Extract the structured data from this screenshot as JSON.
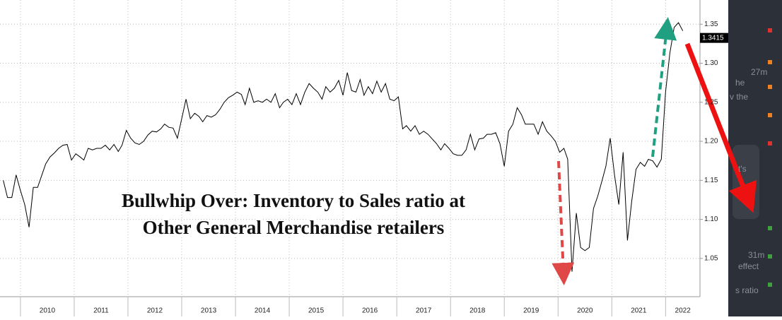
{
  "chart_data": {
    "type": "line",
    "annotation": [
      "Bullwhip Over: Inventory to Sales ratio at",
      "Other General Merchandise retailers"
    ],
    "color": "#000000",
    "x": [
      2009.68,
      2009.76,
      2009.84,
      2009.92,
      2010.0,
      2010.08,
      2010.16,
      2010.24,
      2010.32,
      2010.39,
      2010.47,
      2010.55,
      2010.63,
      2010.71,
      2010.79,
      2010.87,
      2010.95,
      2011.03,
      2011.11,
      2011.18,
      2011.26,
      2011.34,
      2011.42,
      2011.5,
      2011.58,
      2011.66,
      2011.74,
      2011.82,
      2011.89,
      2011.97,
      2012.05,
      2012.13,
      2012.21,
      2012.29,
      2012.37,
      2012.45,
      2012.53,
      2012.61,
      2012.68,
      2012.76,
      2012.84,
      2012.92,
      2013.0,
      2013.08,
      2013.16,
      2013.24,
      2013.32,
      2013.39,
      2013.47,
      2013.55,
      2013.63,
      2013.71,
      2013.79,
      2013.87,
      2013.95,
      2014.03,
      2014.11,
      2014.18,
      2014.26,
      2014.34,
      2014.42,
      2014.5,
      2014.58,
      2014.66,
      2014.74,
      2014.82,
      2014.89,
      2014.97,
      2015.05,
      2015.13,
      2015.21,
      2015.29,
      2015.37,
      2015.45,
      2015.53,
      2015.61,
      2015.68,
      2015.76,
      2015.84,
      2015.92,
      2016.0,
      2016.08,
      2016.16,
      2016.24,
      2016.32,
      2016.39,
      2016.47,
      2016.55,
      2016.63,
      2016.71,
      2016.79,
      2016.87,
      2016.95,
      2017.03,
      2017.11,
      2017.18,
      2017.26,
      2017.34,
      2017.42,
      2017.5,
      2017.58,
      2017.66,
      2017.74,
      2017.82,
      2017.89,
      2017.97,
      2018.05,
      2018.13,
      2018.21,
      2018.29,
      2018.37,
      2018.45,
      2018.53,
      2018.61,
      2018.68,
      2018.76,
      2018.84,
      2018.92,
      2019.0,
      2019.08,
      2019.16,
      2019.24,
      2019.32,
      2019.39,
      2019.47,
      2019.55,
      2019.63,
      2019.71,
      2019.79,
      2019.87,
      2019.95,
      2020.03,
      2020.11,
      2020.18,
      2020.26,
      2020.34,
      2020.42,
      2020.5,
      2020.58,
      2020.66,
      2020.74,
      2020.82,
      2020.89,
      2020.97,
      2021.05,
      2021.13,
      2021.21,
      2021.29,
      2021.37,
      2021.45,
      2021.53,
      2021.61,
      2021.68,
      2021.76,
      2021.84,
      2021.92,
      2022.0,
      2022.08,
      2022.16,
      2022.24,
      2022.32
    ],
    "values": [
      1.15,
      1.128,
      1.128,
      1.157,
      1.137,
      1.119,
      1.09,
      1.141,
      1.141,
      1.155,
      1.171,
      1.18,
      1.185,
      1.191,
      1.195,
      1.196,
      1.176,
      1.184,
      1.18,
      1.176,
      1.191,
      1.189,
      1.191,
      1.191,
      1.195,
      1.189,
      1.196,
      1.187,
      1.195,
      1.214,
      1.204,
      1.198,
      1.196,
      1.2,
      1.208,
      1.213,
      1.212,
      1.216,
      1.222,
      1.218,
      1.217,
      1.204,
      1.229,
      1.254,
      1.229,
      1.236,
      1.232,
      1.225,
      1.233,
      1.231,
      1.234,
      1.241,
      1.25,
      1.256,
      1.259,
      1.263,
      1.26,
      1.247,
      1.268,
      1.25,
      1.252,
      1.25,
      1.254,
      1.25,
      1.261,
      1.243,
      1.25,
      1.254,
      1.247,
      1.261,
      1.247,
      1.263,
      1.274,
      1.268,
      1.263,
      1.254,
      1.27,
      1.263,
      1.268,
      1.278,
      1.259,
      1.288,
      1.265,
      1.263,
      1.279,
      1.259,
      1.27,
      1.261,
      1.277,
      1.263,
      1.274,
      1.254,
      1.252,
      1.257,
      1.216,
      1.22,
      1.213,
      1.22,
      1.209,
      1.213,
      1.209,
      1.203,
      1.197,
      1.189,
      1.197,
      1.191,
      1.184,
      1.182,
      1.182,
      1.189,
      1.209,
      1.189,
      1.203,
      1.204,
      1.209,
      1.209,
      1.211,
      1.197,
      1.168,
      1.213,
      1.222,
      1.243,
      1.234,
      1.222,
      1.222,
      1.222,
      1.209,
      1.225,
      1.213,
      1.207,
      1.2,
      1.186,
      1.191,
      1.177,
      1.033,
      1.108,
      1.064,
      1.06,
      1.064,
      1.114,
      1.13,
      1.15,
      1.168,
      1.204,
      1.157,
      1.119,
      1.186,
      1.073,
      1.123,
      1.164,
      1.173,
      1.168,
      1.177,
      1.175,
      1.167,
      1.177,
      1.263,
      1.313,
      1.346,
      1.352,
      1.3415
    ],
    "xlim": [
      2009.62,
      2022.64
    ],
    "xticks": [
      2010,
      2011,
      2012,
      2013,
      2014,
      2015,
      2016,
      2017,
      2018,
      2019,
      2020,
      2021,
      2022
    ],
    "x_labels": [
      "2010",
      "2011",
      "2012",
      "2013",
      "2014",
      "2015",
      "2016",
      "2017",
      "2018",
      "2019",
      "2020",
      "2021",
      "2022"
    ],
    "ylim": [
      1.001,
      1.381
    ],
    "yticks": [
      {
        "value": 1.05,
        "label": "1.05"
      },
      {
        "value": 1.1,
        "label": "1.10"
      },
      {
        "value": 1.15,
        "label": "1.15"
      },
      {
        "value": 1.2,
        "label": "1.20"
      },
      {
        "value": 1.25,
        "label": "1.25"
      },
      {
        "value": 1.3,
        "label": "1.30"
      },
      {
        "value": 1.35,
        "label": "1.35"
      }
    ],
    "grid": true
  },
  "sidebar": [
    "27m",
    "he",
    "v the",
    "t's",
    "31m",
    "effect",
    "s ratio"
  ]
}
